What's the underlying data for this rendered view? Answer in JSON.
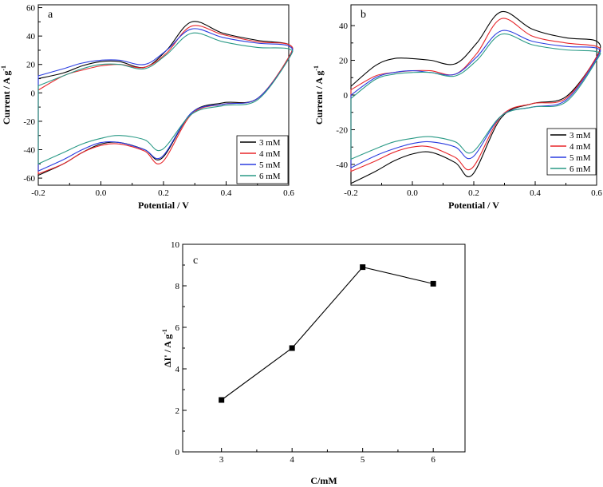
{
  "chart_data": [
    {
      "type": "line",
      "panel_label": "a",
      "xlabel": "Potential / V",
      "ylabel": "Current / A g",
      "ylabel_sup": "-1",
      "xlim": [
        -0.2,
        0.6
      ],
      "ylim": [
        -65,
        62
      ],
      "xticks": [
        -0.2,
        0.0,
        0.2,
        0.4,
        0.6
      ],
      "xtick_labels": [
        "-0.2",
        "0.0",
        "0.2",
        "0.4",
        "0.6"
      ],
      "yticks": [
        -60,
        -40,
        -20,
        0,
        20,
        40,
        60
      ],
      "ytick_labels": [
        "-60",
        "-40",
        "-20",
        "0",
        "20",
        "40",
        "60"
      ],
      "legend_position": "bottom-right",
      "series": [
        {
          "name": "3 mM",
          "color": "#000000",
          "ipa": 50,
          "ipc": -48,
          "top": [
            10,
            14,
            19,
            22,
            22,
            18,
            30,
            50,
            42,
            37,
            34
          ],
          "bot": [
            -58,
            -50,
            -42,
            -36,
            -35,
            -40,
            -46,
            -14,
            -7,
            -4,
            25
          ]
        },
        {
          "name": "4 mM",
          "color": "#e8262a",
          "ipa": 47,
          "ipc": -49,
          "top": [
            2,
            12,
            16,
            19,
            20,
            18,
            28,
            47,
            41,
            36,
            34
          ],
          "bot": [
            -57,
            -50,
            -42,
            -37,
            -36,
            -41,
            -49,
            -15,
            -8,
            -4,
            25
          ]
        },
        {
          "name": "5 mM",
          "color": "#2b3de0",
          "ipa": 45,
          "ipc": -46,
          "top": [
            12,
            17,
            21,
            23,
            23,
            20,
            30,
            45,
            39,
            35,
            33
          ],
          "bot": [
            -55,
            -47,
            -40,
            -35,
            -35,
            -40,
            -45,
            -14,
            -8,
            -4,
            24
          ]
        },
        {
          "name": "6 mM",
          "color": "#2a9a86",
          "ipa": 42,
          "ipc": -40,
          "top": [
            5,
            12,
            17,
            20,
            20,
            17,
            27,
            42,
            36,
            32,
            31
          ],
          "bot": [
            -50,
            -42,
            -36,
            -32,
            -30,
            -33,
            -40,
            -15,
            -9,
            -5,
            24
          ]
        }
      ]
    },
    {
      "type": "line",
      "panel_label": "b",
      "xlabel": "Potential / V",
      "ylabel": "Current / A g",
      "ylabel_sup": "-1",
      "xlim": [
        -0.2,
        0.6
      ],
      "ylim": [
        -52,
        52
      ],
      "xticks": [
        -0.2,
        0.0,
        0.2,
        0.4,
        0.6
      ],
      "xtick_labels": [
        "-0.2",
        "0.0",
        "0.2",
        "0.4",
        "0.6"
      ],
      "yticks": [
        -40,
        -20,
        0,
        20,
        40
      ],
      "ytick_labels": [
        "-40",
        "-20",
        "0",
        "20",
        "40"
      ],
      "legend_position": "bottom-right",
      "series": [
        {
          "name": "3 mM",
          "color": "#000000",
          "ipa": 48,
          "ipc": -46,
          "top": [
            5,
            17,
            21,
            21,
            20,
            18,
            30,
            48,
            38,
            33,
            31
          ],
          "bot": [
            -51,
            -44,
            -38,
            -34,
            -33,
            -39,
            -46,
            -13,
            -5,
            -1,
            22
          ]
        },
        {
          "name": "4 mM",
          "color": "#e8262a",
          "ipa": 44,
          "ipc": -43,
          "top": [
            3,
            11,
            13,
            14,
            14,
            12,
            24,
            44,
            34,
            30,
            28
          ],
          "bot": [
            -44,
            -38,
            -33,
            -30,
            -30,
            -36,
            -42,
            -12,
            -5,
            -2,
            22
          ]
        },
        {
          "name": "5 mM",
          "color": "#2b3de0",
          "ipa": 37,
          "ipc": -36,
          "top": [
            0,
            10,
            13,
            14,
            13,
            12,
            22,
            37,
            31,
            28,
            27
          ],
          "bot": [
            -42,
            -35,
            -31,
            -28,
            -27,
            -30,
            -36,
            -12,
            -7,
            -3,
            21
          ]
        },
        {
          "name": "6 mM",
          "color": "#2a9a86",
          "ipa": 35,
          "ipc": -33,
          "top": [
            -2,
            9,
            12,
            13,
            13,
            11,
            20,
            35,
            29,
            26,
            25
          ],
          "bot": [
            -37,
            -31,
            -27,
            -25,
            -24,
            -27,
            -33,
            -12,
            -7,
            -4,
            20
          ]
        }
      ]
    },
    {
      "type": "line",
      "panel_label": "c",
      "xlabel": "C/mM",
      "ylabel": "ΔI' / A g",
      "ylabel_sup": "-1",
      "xlim": [
        2.45,
        6.45
      ],
      "ylim": [
        0,
        10
      ],
      "xticks": [
        3,
        4,
        5,
        6
      ],
      "xtick_labels": [
        "3",
        "4",
        "5",
        "6"
      ],
      "yticks": [
        0,
        2,
        4,
        6,
        8,
        10
      ],
      "ytick_labels": [
        "0",
        "2",
        "4",
        "6",
        "8",
        "10"
      ],
      "x": [
        3,
        4,
        5,
        6
      ],
      "series": [
        {
          "name": "ΔI'",
          "color": "#000000",
          "marker": "square",
          "values": [
            2.5,
            5.0,
            8.9,
            8.1
          ]
        }
      ]
    }
  ]
}
